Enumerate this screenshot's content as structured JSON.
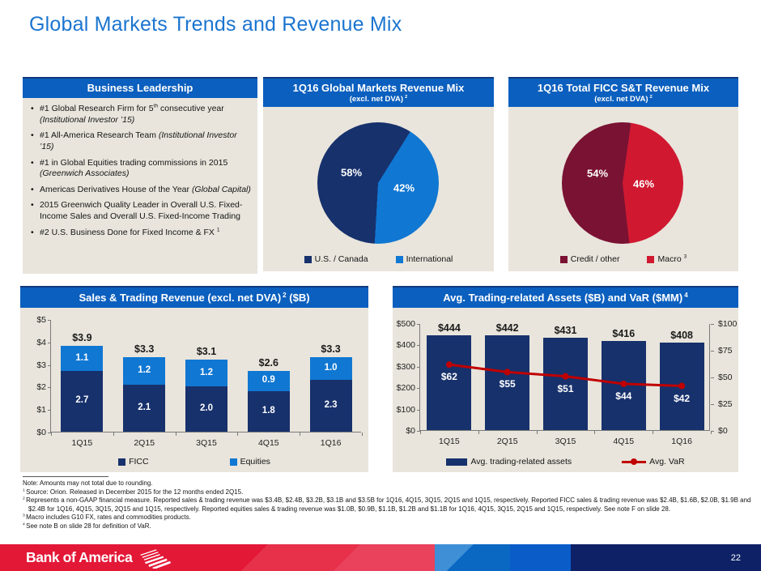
{
  "slide": {
    "title": "Global Markets Trends and Revenue Mix",
    "brand": "Bank of America",
    "page_number": "22"
  },
  "colors": {
    "title_blue": "#1B75D0",
    "header_blue": "#0B5FBE",
    "panel_bg": "#E9E5DC",
    "navy": "#17316C",
    "light_blue": "#1077D2",
    "maroon": "#7A1233",
    "bright_red": "#D01931",
    "var_line_red": "#C00000",
    "footer_red": "#E31837",
    "footer_navy": "#0E2167"
  },
  "business_leadership": {
    "title": "Business Leadership",
    "bullets": [
      [
        {
          "t": "#1 Global Research Firm for 5"
        },
        {
          "t": "th",
          "s": "sup"
        },
        {
          "t": " consecutive year "
        },
        {
          "t": "(Institutional Investor ’15)",
          "s": "i"
        }
      ],
      [
        {
          "t": "#1 All-America Research Team "
        },
        {
          "t": "(Institutional Investor ’15)",
          "s": "i"
        }
      ],
      [
        {
          "t": "#1 in Global Equities trading commissions in 2015 "
        },
        {
          "t": "(Greenwich Associates)",
          "s": "i"
        }
      ],
      [
        {
          "t": "Americas Derivatives House of the Year "
        },
        {
          "t": "(Global Capital)",
          "s": "i"
        }
      ],
      [
        {
          "t": "2015 Greenwich Quality Leader in Overall U.S. Fixed-Income Sales and Overall U.S. Fixed-Income Trading"
        }
      ],
      [
        {
          "t": "#2 U.S. Business Done for Fixed Income & FX "
        },
        {
          "t": "1",
          "s": "sup"
        }
      ]
    ]
  },
  "chart_data": [
    {
      "id": "gm_mix",
      "type": "pie",
      "title": "1Q16 Global Markets Revenue Mix",
      "subtitle": "(excl. net DVA)",
      "subtitle_sup": "2",
      "start_deg": 32,
      "legend_position": "bottom",
      "slices": [
        {
          "label": "U.S. / Canada",
          "value": 58,
          "pct_label": "58%",
          "color": "#17316C"
        },
        {
          "label": "International",
          "value": 42,
          "pct_label": "42%",
          "color": "#1077D2"
        }
      ]
    },
    {
      "id": "ficc_mix",
      "type": "pie",
      "title": "1Q16 Total FICC S&T Revenue Mix",
      "subtitle": "(excl. net DVA)",
      "subtitle_sup": "2",
      "start_deg": 8,
      "legend_position": "bottom",
      "slices": [
        {
          "label": "Credit / other",
          "value": 54,
          "pct_label": "54%",
          "color": "#7A1233"
        },
        {
          "label": "Macro",
          "sup": "3",
          "value": 46,
          "pct_label": "46%",
          "color": "#D01931"
        }
      ]
    },
    {
      "id": "st_revenue",
      "type": "bar",
      "stacked": true,
      "title_pre": "Sales & Trading Revenue (excl. net DVA)",
      "title_sup": "2",
      "title_post": " ($B)",
      "categories": [
        "1Q15",
        "2Q15",
        "3Q15",
        "4Q15",
        "1Q16"
      ],
      "series": [
        {
          "name": "FICC",
          "color": "#17316C",
          "values": [
            2.7,
            2.1,
            2.0,
            1.8,
            2.3
          ]
        },
        {
          "name": "Equities",
          "color": "#1077D2",
          "values": [
            1.1,
            1.2,
            1.2,
            0.9,
            1.0
          ]
        }
      ],
      "totals": [
        "$3.9",
        "$3.3",
        "$3.1",
        "$2.6",
        "$3.3"
      ],
      "ylim": [
        0,
        5
      ],
      "yticks": [
        "$5",
        "$4",
        "$3",
        "$2",
        "$1",
        "$0"
      ],
      "grid": false,
      "legend_position": "bottom"
    },
    {
      "id": "assets_var",
      "type": "bar-line",
      "title_pre": "Avg. Trading-related Assets ($B) and VaR ($MM)",
      "title_sup": "4",
      "title_post": "",
      "categories": [
        "1Q15",
        "2Q15",
        "3Q15",
        "4Q15",
        "1Q16"
      ],
      "bars": {
        "name": "Avg. trading-related assets",
        "color": "#17316C",
        "values": [
          444,
          442,
          431,
          416,
          408
        ],
        "labels": [
          "$444",
          "$442",
          "$431",
          "$416",
          "$408"
        ]
      },
      "line": {
        "name": "Avg. VaR",
        "color": "#C00000",
        "values": [
          62,
          55,
          51,
          44,
          42
        ],
        "labels": [
          "$62",
          "$55",
          "$51",
          "$44",
          "$42"
        ]
      },
      "ylim_left": [
        0,
        500
      ],
      "yticks_left": [
        "$500",
        "$400",
        "$300",
        "$200",
        "$100",
        "$0"
      ],
      "ylim_right": [
        0,
        100
      ],
      "yticks_right": [
        "$100",
        "$75",
        "$50",
        "$25",
        "$0"
      ],
      "grid": false,
      "legend_position": "bottom"
    }
  ],
  "footnotes": {
    "note": "Note: Amounts may not total due to rounding.",
    "items": [
      {
        "sup": "1",
        "text": "Source: Orion. Released in December 2015 for the 12 months ended 2Q15."
      },
      {
        "sup": "2",
        "text": "Represents a non-GAAP financial measure. Reported sales & trading revenue was $3.4B, $2.4B, $3.2B, $3.1B and $3.5B for 1Q16, 4Q15, 3Q15, 2Q15 and 1Q15, respectively. Reported FICC sales & trading revenue was $2.4B, $1.6B, $2.0B, $1.9B and $2.4B for 1Q16, 4Q15, 3Q15, 2Q15 and 1Q15, respectively. Reported equities sales & trading revenue was $1.0B, $0.9B, $1.1B, $1.2B and $1.1B for 1Q16, 4Q15, 3Q15, 2Q15 and 1Q15, respectively. See note F on slide 28."
      },
      {
        "sup": "3",
        "text": "Macro includes G10 FX, rates and commodities products."
      },
      {
        "sup": "4",
        "text": "See note B on slide 28 for definition of VaR."
      }
    ]
  }
}
